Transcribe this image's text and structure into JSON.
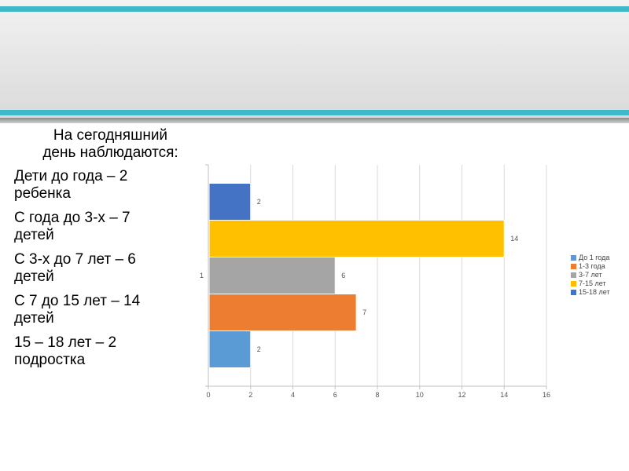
{
  "slide": {
    "subtitle_line1": "На сегодняшний",
    "subtitle_line2": "день наблюдаются:",
    "items": [
      {
        "line1": "Дети до года – 2",
        "line2": "ребенка"
      },
      {
        "line1": "С года до 3-х – 7",
        "line2": "детей"
      },
      {
        "line1": "С 3-х до 7 лет – 6",
        "line2": "детей"
      },
      {
        "line1": "С 7 до 15 лет – 14",
        "line2": "детей"
      },
      {
        "line1": "15 – 18 лет – 2",
        "line2": "подростка"
      }
    ]
  },
  "chart_data": {
    "type": "bar",
    "orientation": "horizontal",
    "categories": [
      "1"
    ],
    "xlim": [
      0,
      16
    ],
    "xticks": [
      "0",
      "2",
      "4",
      "6",
      "8",
      "10",
      "12",
      "14",
      "16"
    ],
    "grid": true,
    "legend_position": "right",
    "series": [
      {
        "name": "До 1 года",
        "value": 2,
        "color": "#5b9bd5"
      },
      {
        "name": "1-3 года",
        "value": 7,
        "color": "#ed7d31"
      },
      {
        "name": "3-7 лет",
        "value": 6,
        "color": "#a5a5a5"
      },
      {
        "name": "7-15 лет",
        "value": 14,
        "color": "#ffc000"
      },
      {
        "name": "15-18 лет",
        "value": 2,
        "color": "#4472c4"
      }
    ]
  }
}
